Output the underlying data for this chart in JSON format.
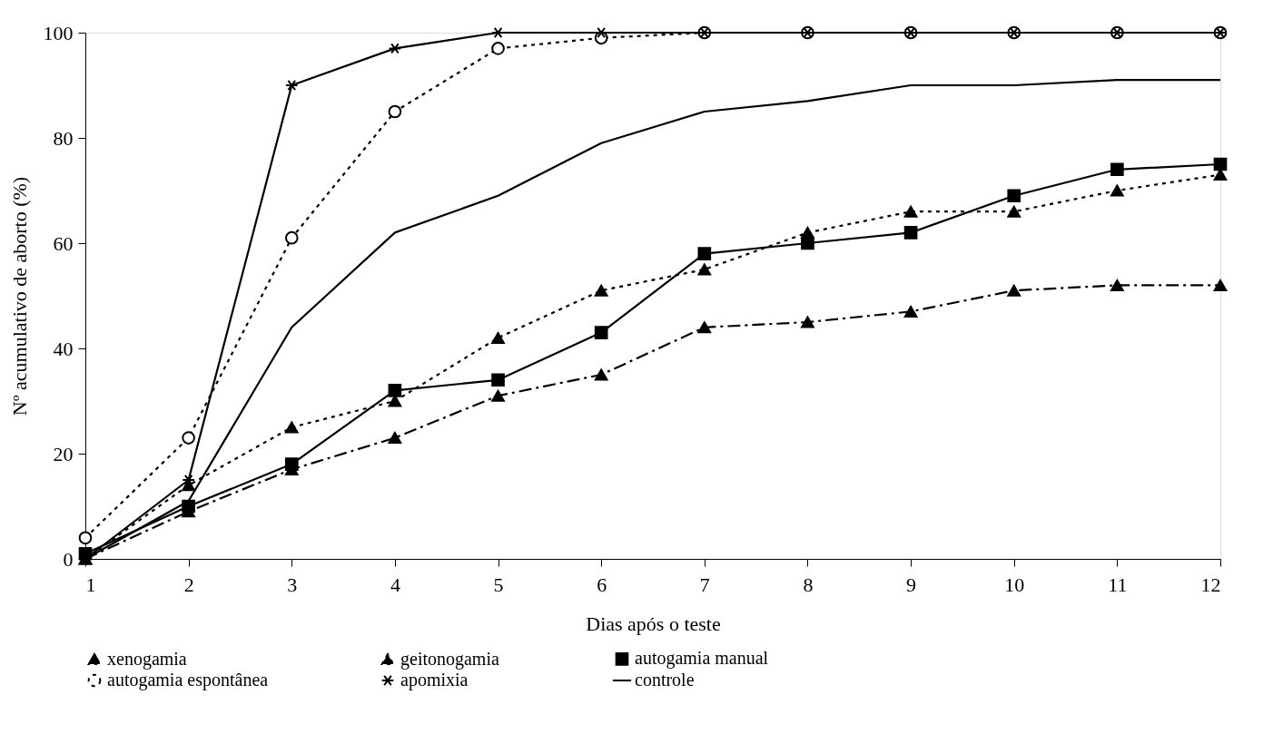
{
  "chart_data": {
    "type": "line",
    "xlabel": "Dias após o teste",
    "ylabel": "Nº acumulativo de aborto (%)",
    "x": [
      1,
      2,
      3,
      4,
      5,
      6,
      7,
      8,
      9,
      10,
      11,
      12
    ],
    "series": [
      {
        "name": "xenogamia",
        "color": "#000000",
        "marker": "triangle",
        "line_style": "dashed",
        "values": [
          0,
          9,
          17,
          23,
          31,
          35,
          44,
          45,
          47,
          51,
          52,
          52
        ]
      },
      {
        "name": "geitonogamia",
        "color": "#000000",
        "marker": "triangle",
        "line_style": "dotted",
        "values": [
          0,
          14,
          25,
          30,
          42,
          51,
          55,
          62,
          66,
          66,
          70,
          73
        ]
      },
      {
        "name": "autogamia manual",
        "color": "#000000",
        "marker": "square",
        "line_style": "solid",
        "values": [
          1,
          10,
          18,
          32,
          34,
          43,
          58,
          60,
          62,
          69,
          74,
          75
        ]
      },
      {
        "name": "autogamia espontânea",
        "color": "#000000",
        "marker": "circle",
        "line_style": "dotted",
        "values": [
          4,
          23,
          61,
          85,
          97,
          99,
          100,
          100,
          100,
          100,
          100,
          100
        ]
      },
      {
        "name": "apomixia",
        "color": "#000000",
        "marker": "cross",
        "line_style": "solid",
        "values": [
          0,
          15,
          90,
          97,
          100,
          100,
          100,
          100,
          100,
          100,
          100,
          100
        ]
      },
      {
        "name": "controle",
        "color": "#000000",
        "marker": "none",
        "line_style": "solid",
        "values": [
          0,
          11,
          44,
          62,
          69,
          79,
          85,
          87,
          90,
          90,
          91,
          91
        ]
      }
    ],
    "xlim": [
      1,
      12
    ],
    "xticks": [
      1,
      2,
      3,
      4,
      5,
      6,
      7,
      8,
      9,
      10,
      11,
      12
    ],
    "ylim": [
      0,
      100
    ],
    "yticks": [
      0,
      20,
      40,
      60,
      80,
      100
    ],
    "grid": false,
    "legend": "bottom"
  }
}
